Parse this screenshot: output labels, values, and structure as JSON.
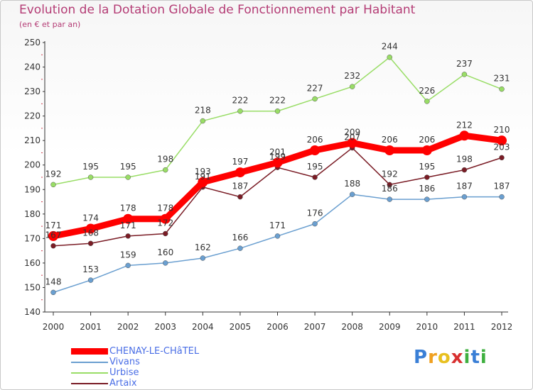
{
  "chart_data": {
    "type": "line",
    "title": "Evolution de la Dotation Globale de Fonctionnement par Habitant",
    "subtitle": "(en € et par an)",
    "x": [
      "2000",
      "2001",
      "2002",
      "2003",
      "2004",
      "2005",
      "2006",
      "2007",
      "2008",
      "2009",
      "2010",
      "2011",
      "2012"
    ],
    "ylim": [
      140,
      250
    ],
    "yticks": [
      140,
      150,
      160,
      170,
      180,
      190,
      200,
      210,
      220,
      230,
      240,
      250
    ],
    "grid": false,
    "legend_position": "bottom-left",
    "series": [
      {
        "name": "CHENAY-LE-CHâTEL",
        "color": "#ff0000",
        "values": [
          171,
          174,
          178,
          178,
          193,
          197,
          201,
          206,
          209,
          206,
          206,
          212,
          210
        ]
      },
      {
        "name": "Vivans",
        "color": "#6a9fd0",
        "values": [
          148,
          153,
          159,
          160,
          162,
          166,
          171,
          176,
          188,
          186,
          186,
          187,
          187
        ]
      },
      {
        "name": "Urbise",
        "color": "#99dd66",
        "values": [
          192,
          195,
          195,
          198,
          218,
          222,
          222,
          227,
          232,
          244,
          226,
          237,
          231
        ]
      },
      {
        "name": "Artaix",
        "color": "#7a1c25",
        "values": [
          167,
          168,
          171,
          172,
          191,
          187,
          199,
          195,
          207,
          192,
          195,
          198,
          203
        ]
      }
    ]
  },
  "logo": {
    "letters": [
      "P",
      "r",
      "o",
      "x",
      "i",
      "t",
      "i"
    ],
    "colors": [
      "#3a7fd6",
      "#f0a020",
      "#e8c020",
      "#d83030",
      "#3fb040",
      "#3a7fd6",
      "#3fb040"
    ]
  }
}
